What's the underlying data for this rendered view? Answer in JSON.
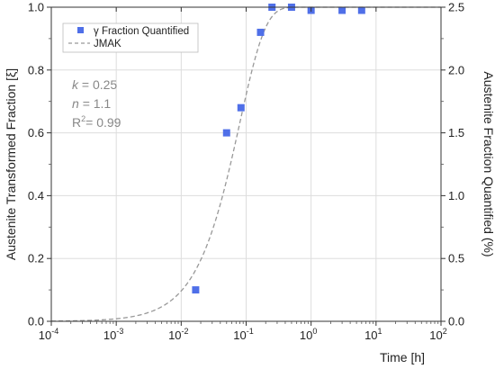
{
  "chart_data": {
    "type": "scatter",
    "xlabel": "Time [h]",
    "ylabel_left": "Austenite Transformed Fraction [ξ]",
    "ylabel_right": "Austenite Fraction Quantified (%)",
    "x_scale": "log",
    "xlim": [
      0.0001,
      100
    ],
    "ylim_left": [
      0,
      1.0
    ],
    "ylim_right": [
      0,
      2.5
    ],
    "x_ticks": [
      0.0001,
      0.001,
      0.01,
      0.1,
      1,
      10,
      100
    ],
    "x_tick_labels": [
      {
        "base": "10",
        "exp": "-4"
      },
      {
        "base": "10",
        "exp": "-3"
      },
      {
        "base": "10",
        "exp": "-2"
      },
      {
        "base": "10",
        "exp": "-1"
      },
      {
        "base": "10",
        "exp": "0"
      },
      {
        "base": "10",
        "exp": "1"
      },
      {
        "base": "10",
        "exp": "2"
      }
    ],
    "y_left_ticks": [
      0.0,
      0.2,
      0.4,
      0.6,
      0.8,
      1.0
    ],
    "y_left_tick_labels": [
      "0.0",
      "0.2",
      "0.4",
      "0.6",
      "0.8",
      "1.0"
    ],
    "y_right_ticks": [
      0.0,
      0.5,
      1.0,
      1.5,
      2.0,
      2.5
    ],
    "y_right_tick_labels": [
      "0.0",
      "0.5",
      "1.0",
      "1.5",
      "2.0",
      "2.5"
    ],
    "grid": true,
    "legend_position": "top-left",
    "series": [
      {
        "name": "γ Fraction Quantified",
        "kind": "scatter",
        "marker": "square",
        "color": "#4f6fe8",
        "x": [
          0.0167,
          0.05,
          0.0833,
          0.1667,
          0.25,
          0.5,
          1,
          3,
          6
        ],
        "y": [
          0.1,
          0.6,
          0.68,
          0.92,
          1.0,
          1.0,
          0.99,
          0.99,
          0.99
        ]
      },
      {
        "name": "JMAK",
        "kind": "line",
        "style": "dashed",
        "color": "#999999",
        "k": 0.25,
        "n": 1.1
      }
    ],
    "annotations": {
      "k": {
        "label": "k",
        "value": "= 0.25"
      },
      "n": {
        "label": "n",
        "value": "= 1.1"
      },
      "r2": {
        "label": "R",
        "sup": "2",
        "value": "= 0.99"
      }
    }
  }
}
